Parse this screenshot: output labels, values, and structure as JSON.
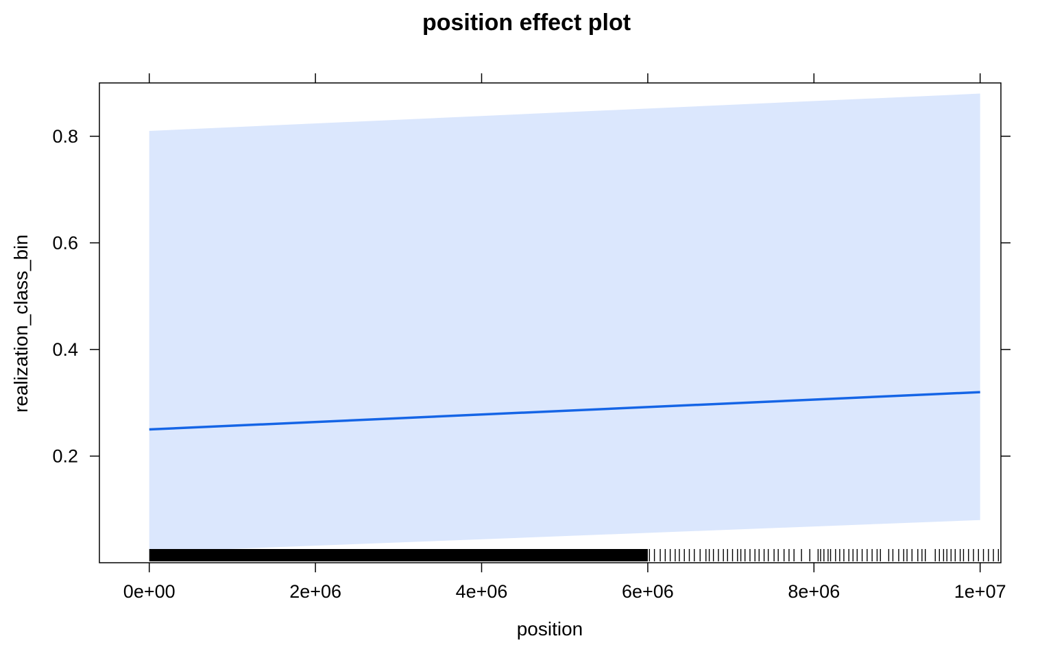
{
  "chart_data": {
    "type": "line",
    "title": "position effect plot",
    "xlabel": "position",
    "ylabel": "realization_class_bin",
    "xlim": [
      -600000,
      10250000
    ],
    "ylim": [
      0.0,
      0.9
    ],
    "x_ticks": [
      {
        "value": 0,
        "label": "0e+00"
      },
      {
        "value": 2000000,
        "label": "2e+06"
      },
      {
        "value": 4000000,
        "label": "4e+06"
      },
      {
        "value": 6000000,
        "label": "6e+06"
      },
      {
        "value": 8000000,
        "label": "8e+06"
      },
      {
        "value": 10000000,
        "label": "1e+07"
      }
    ],
    "y_ticks": [
      {
        "value": 0.2,
        "label": "0.2"
      },
      {
        "value": 0.4,
        "label": "0.4"
      },
      {
        "value": 0.6,
        "label": "0.6"
      },
      {
        "value": 0.8,
        "label": "0.8"
      }
    ],
    "series": [
      {
        "x": [
          0,
          10000000
        ],
        "fit": [
          0.25,
          0.32
        ],
        "lower": [
          0.02,
          0.08
        ],
        "upper": [
          0.81,
          0.88
        ]
      }
    ],
    "rug": {
      "dense_until": 6000000,
      "x_sparse": [
        6020000,
        6080000,
        6150000,
        6210000,
        6270000,
        6330000,
        6380000,
        6440000,
        6500000,
        6560000,
        6630000,
        6700000,
        6740000,
        6790000,
        6850000,
        6910000,
        6960000,
        7020000,
        7080000,
        7120000,
        7170000,
        7230000,
        7290000,
        7340000,
        7400000,
        7450000,
        7520000,
        7570000,
        7640000,
        7700000,
        7760000,
        7850000,
        7950000,
        8050000,
        8080000,
        8120000,
        8170000,
        8200000,
        8260000,
        8310000,
        8360000,
        8420000,
        8470000,
        8520000,
        8580000,
        8640000,
        8700000,
        8760000,
        8800000,
        8900000,
        8950000,
        9020000,
        9080000,
        9120000,
        9180000,
        9250000,
        9300000,
        9340000,
        9460000,
        9510000,
        9560000,
        9600000,
        9650000,
        9700000,
        9760000,
        9800000,
        9860000,
        9920000,
        9980000,
        10040000,
        10100000,
        10160000,
        10220000
      ]
    },
    "colors": {
      "line": "#1565e6",
      "band": "#dbe7fd",
      "axis": "#000000"
    },
    "grid": false,
    "legend": "none"
  }
}
